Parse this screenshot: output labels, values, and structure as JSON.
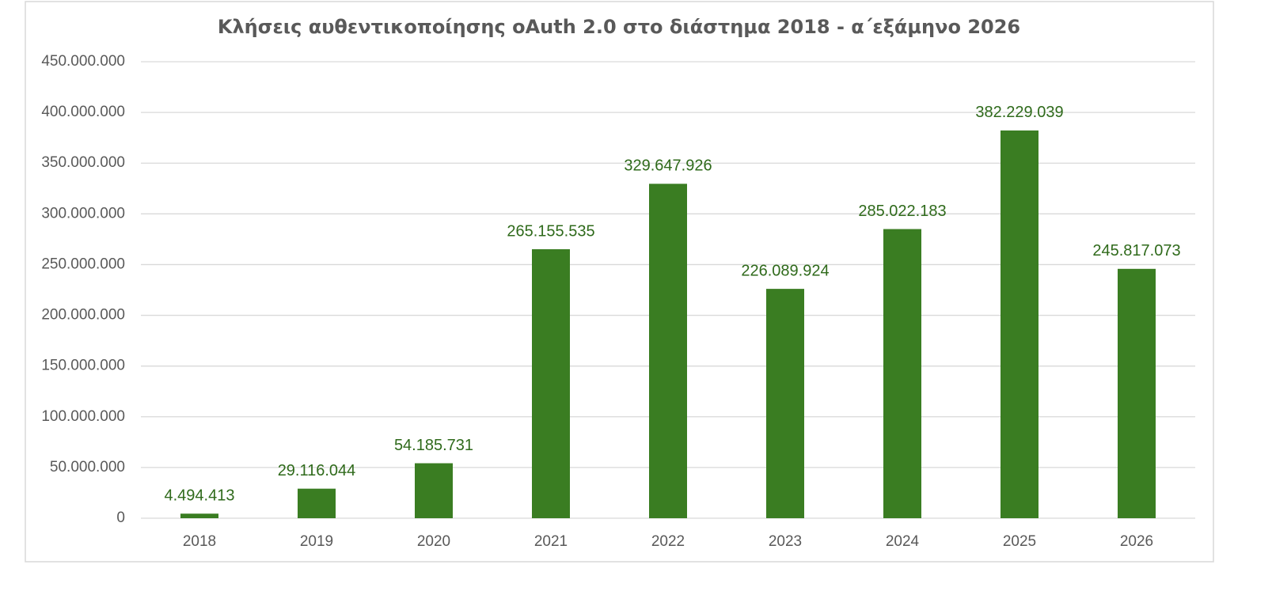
{
  "chart_data": {
    "type": "bar",
    "title": "Κλήσεις αυθεντικοποίησης oAuth 2.0 στο διάστημα 2018 - α΄εξάμηνο 2026",
    "categories": [
      "2018",
      "2019",
      "2020",
      "2021",
      "2022",
      "2023",
      "2024",
      "2025",
      "2026"
    ],
    "values": [
      4494413,
      29116044,
      54185731,
      265155535,
      329647926,
      226089924,
      285022183,
      382229039,
      245817073
    ],
    "value_labels": [
      "4.494.413",
      "29.116.044",
      "54.185.731",
      "265.155.535",
      "329.647.926",
      "226.089.924",
      "285.022.183",
      "382.229.039",
      "245.817.073"
    ],
    "color": "#3a7d22",
    "ylim": [
      0,
      450000000
    ],
    "yticks": [
      0,
      {
        "value": 50000000,
        "label": "50.000.000"
      },
      {
        "value": 100000000,
        "label": "100.000.000"
      },
      {
        "value": 150000000,
        "label": "150.000.000"
      },
      {
        "value": 200000000,
        "label": "200.000.000"
      },
      {
        "value": 250000000,
        "label": "250.000.000"
      },
      {
        "value": 300000000,
        "label": "300.000.000"
      },
      {
        "value": 350000000,
        "label": "350.000.000"
      },
      {
        "value": 400000000,
        "label": "400.000.000"
      },
      {
        "value": 450000000,
        "label": "450.000.000"
      }
    ],
    "grid": true
  }
}
